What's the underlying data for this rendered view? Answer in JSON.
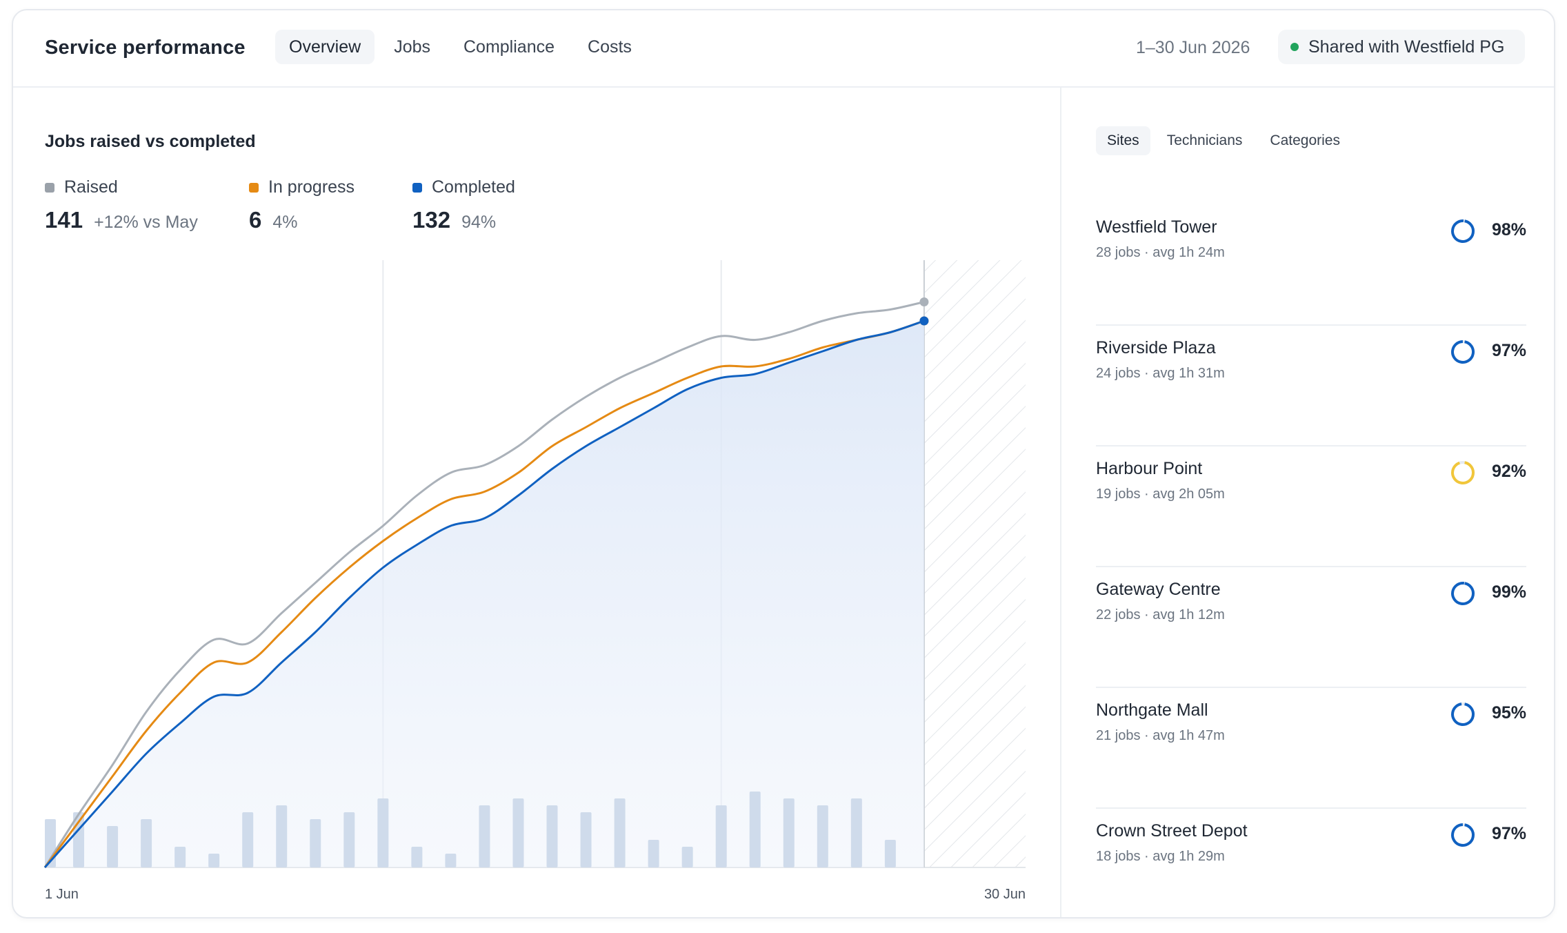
{
  "header": {
    "title": "Service performance",
    "tabs": [
      "Overview",
      "Jobs",
      "Compliance",
      "Costs"
    ],
    "date_range": "1–30 Jun 2026",
    "share_label": "Shared with Westfield PG"
  },
  "colors": {
    "raised": "#aab1b9",
    "in_progress": "#e58a14",
    "completed": "#1061c1",
    "bars": "#cfdbeb",
    "status_green": "#22a45d",
    "ring_blue": "#1061c1",
    "ring_yellow": "#f1c63a"
  },
  "chart": {
    "title": "Jobs raised vs completed",
    "legend": [
      {
        "label": "Raised",
        "value": "141",
        "sub": "+12% vs May",
        "color": "#9aa1a9"
      },
      {
        "label": "In progress",
        "value": "6",
        "sub": "4%",
        "color": "#e58a14"
      },
      {
        "label": "Completed",
        "value": "132",
        "sub": "94%",
        "color": "#1061c1"
      }
    ],
    "x_start": "1 Jun",
    "x_end": "30 Jun"
  },
  "chart_data": {
    "type": "line",
    "x": [
      1,
      2,
      3,
      4,
      5,
      6,
      7,
      8,
      9,
      10,
      11,
      12,
      13,
      14,
      15,
      16,
      17,
      18,
      19,
      20,
      21,
      22,
      23,
      24,
      25,
      26,
      27,
      28,
      29,
      30
    ],
    "xlabel": "",
    "ylabel": "",
    "x_tick_labels": [
      "1 Jun",
      "30 Jun"
    ],
    "grid": true,
    "series": [
      {
        "name": "Raised",
        "values": [
          0,
          14,
          27,
          41,
          52,
          60,
          59,
          67,
          75,
          83,
          90,
          98,
          104,
          106,
          111,
          118,
          124,
          129,
          133,
          137,
          140,
          139,
          141,
          144,
          146,
          147,
          149,
          null,
          null,
          null
        ]
      },
      {
        "name": "In progress",
        "values": [
          0,
          12,
          24,
          36,
          46,
          54,
          54,
          62,
          71,
          79,
          86,
          92,
          97,
          99,
          104,
          111,
          116,
          121,
          125,
          129,
          132,
          132,
          134,
          137,
          139,
          141,
          144,
          null,
          null,
          null
        ]
      },
      {
        "name": "Completed",
        "values": [
          0,
          10,
          20,
          30,
          38,
          45,
          46,
          54,
          62,
          71,
          79,
          85,
          90,
          92,
          98,
          105,
          111,
          116,
          121,
          126,
          129,
          130,
          133,
          136,
          139,
          141,
          144,
          null,
          null,
          null
        ]
      },
      {
        "name": "",
        "type": "bar",
        "values": [
          7,
          8,
          6,
          7,
          3,
          2,
          8,
          9,
          7,
          8,
          10,
          3,
          2,
          9,
          10,
          9,
          8,
          10,
          4,
          3,
          9,
          11,
          10,
          9,
          10,
          4,
          null,
          null,
          null,
          null
        ]
      }
    ]
  },
  "side": {
    "tabs": [
      "Sites",
      "Technicians",
      "Categories"
    ],
    "sites": [
      {
        "name": "Westfield Tower",
        "meta": "28 jobs · avg 1h 24m",
        "pct": "98%",
        "value": 98,
        "color": "#1061c1"
      },
      {
        "name": "Riverside Plaza",
        "meta": "24 jobs · avg 1h 31m",
        "pct": "97%",
        "value": 97,
        "color": "#1061c1"
      },
      {
        "name": "Harbour Point",
        "meta": "19 jobs · avg 2h 05m",
        "pct": "92%",
        "value": 92,
        "color": "#f1c63a"
      },
      {
        "name": "Gateway Centre",
        "meta": "22 jobs · avg 1h 12m",
        "pct": "99%",
        "value": 99,
        "color": "#1061c1"
      },
      {
        "name": "Northgate Mall",
        "meta": "21 jobs · avg 1h 47m",
        "pct": "95%",
        "value": 95,
        "color": "#1061c1"
      },
      {
        "name": "Crown Street Depot",
        "meta": "18 jobs · avg 1h 29m",
        "pct": "97%",
        "value": 97,
        "color": "#1061c1"
      }
    ]
  }
}
